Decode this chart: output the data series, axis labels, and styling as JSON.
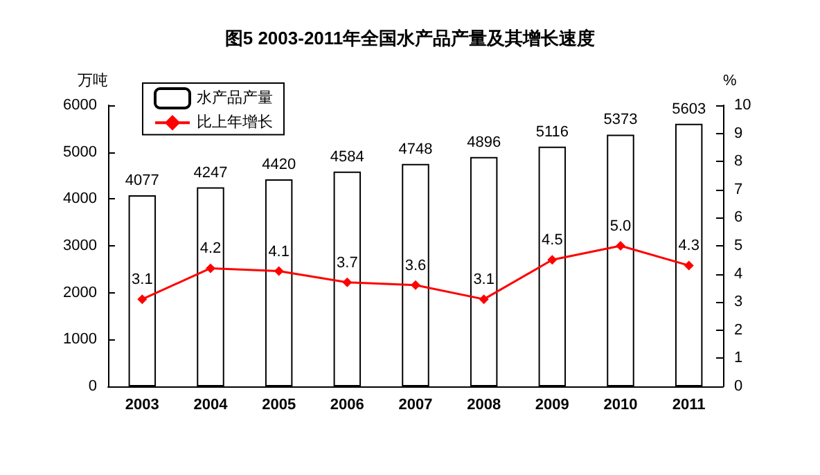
{
  "chart_data": {
    "type": "bar",
    "title": "图5 2003-2011年全国水产品产量及其增长速度",
    "ylabel": "万吨",
    "y2label": "%",
    "categories": [
      "2003",
      "2004",
      "2005",
      "2006",
      "2007",
      "2008",
      "2009",
      "2010",
      "2011"
    ],
    "series": [
      {
        "name": "水产品产量",
        "color": "#ffffff",
        "values": [
          4077,
          4247,
          4420,
          4584,
          4748,
          4896,
          5116,
          5373,
          5603
        ]
      },
      {
        "name": "比上年增长",
        "type": "line",
        "axis": "y2",
        "color": "#ff0000",
        "values": [
          3.1,
          4.2,
          4.1,
          3.7,
          3.6,
          3.1,
          4.5,
          5.0,
          4.3
        ],
        "value_labels": [
          "3.1",
          "4.2",
          "4.1",
          "3.7",
          "3.6",
          "3.1",
          "4.5",
          "5.0",
          "4.3"
        ]
      }
    ],
    "ylim": [
      0,
      6000
    ],
    "yticks": [
      0,
      1000,
      2000,
      3000,
      4000,
      5000,
      6000
    ],
    "y2lim": [
      0,
      10
    ],
    "y2ticks": [
      0,
      1,
      2,
      3,
      4,
      5,
      6,
      7,
      8,
      9,
      10
    ],
    "data_labels": true,
    "grid": false,
    "legend": "top left",
    "marker": "diamond",
    "line_style": "solid"
  }
}
